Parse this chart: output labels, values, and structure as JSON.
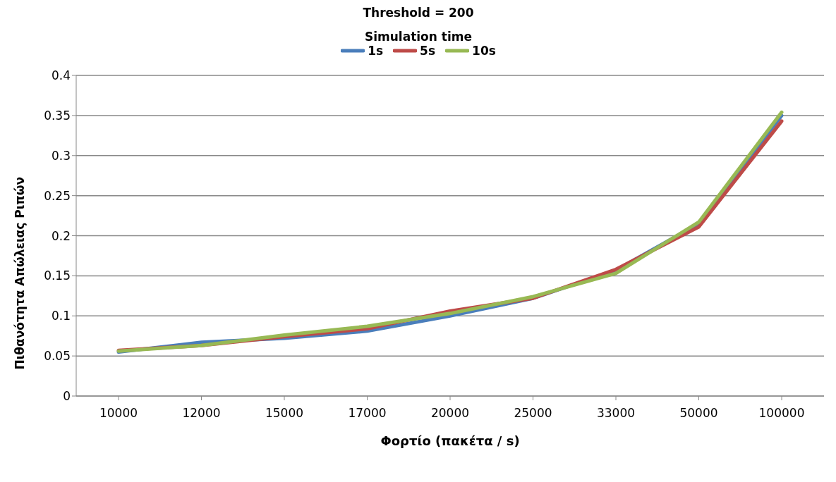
{
  "chart_data": {
    "type": "line",
    "title": "Threshold = 200",
    "legend_title": "Simulation time",
    "xlabel": "Φορτίο (πακέτα / s)",
    "ylabel": "Πιθανότητα Απώλειας Ριπών",
    "categories": [
      "10000",
      "12000",
      "15000",
      "17000",
      "20000",
      "25000",
      "33000",
      "50000",
      "100000"
    ],
    "series": [
      {
        "name": "1s",
        "color": "#4a7ebb",
        "values": [
          0.055,
          0.067,
          0.072,
          0.081,
          0.1,
          0.122,
          0.157,
          0.215,
          0.35
        ]
      },
      {
        "name": "5s",
        "color": "#be4b48",
        "values": [
          0.057,
          0.063,
          0.074,
          0.084,
          0.106,
          0.122,
          0.158,
          0.211,
          0.343
        ]
      },
      {
        "name": "10s",
        "color": "#98b954",
        "values": [
          0.056,
          0.063,
          0.076,
          0.087,
          0.103,
          0.124,
          0.153,
          0.217,
          0.354
        ]
      }
    ],
    "ylim": [
      0,
      0.4
    ],
    "yticks": [
      0,
      0.05,
      0.1,
      0.15,
      0.2,
      0.25,
      0.3,
      0.35,
      0.4
    ],
    "grid": "y",
    "legend": "top",
    "marker": "none",
    "line_style": "solid"
  }
}
